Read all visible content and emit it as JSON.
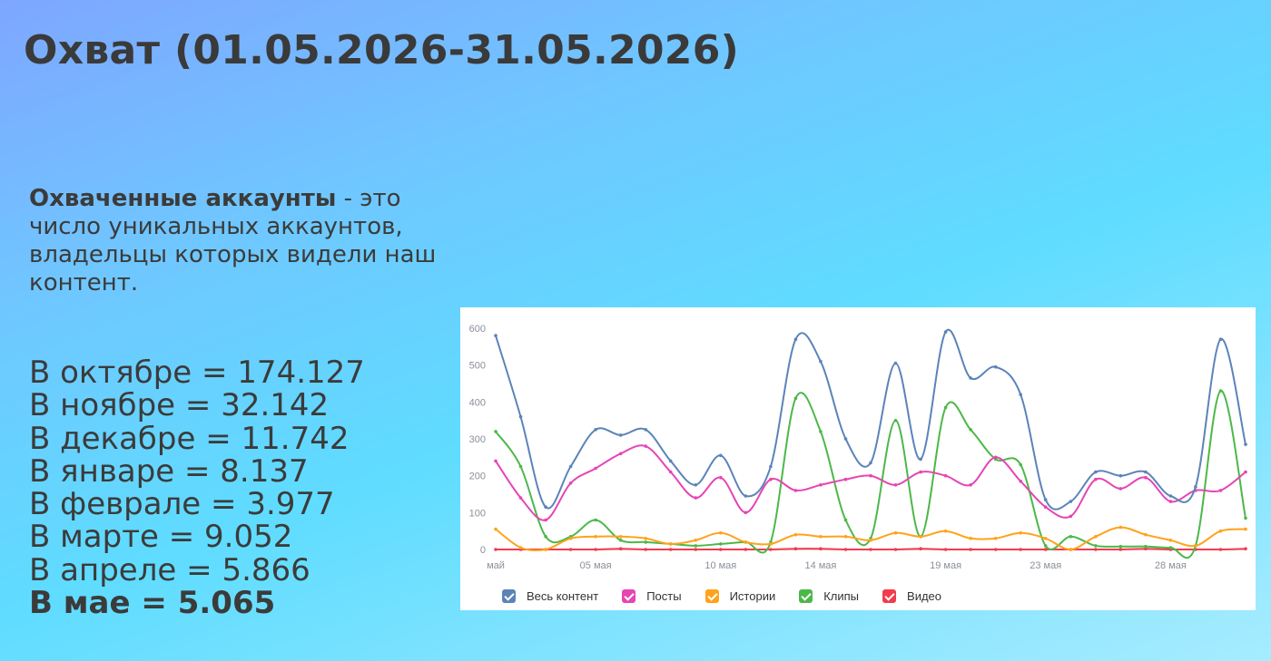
{
  "page": {
    "title": "Охват (01.05.2026-31.05.2026)",
    "description_bold": "Охваченные аккаунты",
    "description_rest": " - это число уникальных аккаунтов, владельцы которых видели наш контент.",
    "monthly": [
      {
        "text": "В октябре = 174.127",
        "bold": false
      },
      {
        "text": "В ноябре = 32.142",
        "bold": false
      },
      {
        "text": "В декабре = 11.742",
        "bold": false
      },
      {
        "text": "В январе = 8.137",
        "bold": false
      },
      {
        "text": "В феврале = 3.977",
        "bold": false
      },
      {
        "text": "В марте = 9.052",
        "bold": false
      },
      {
        "text": "В апреле = 5.866",
        "bold": false
      },
      {
        "text": "В мае = 5.065",
        "bold": true
      }
    ]
  },
  "chart_data": {
    "type": "line",
    "x": [
      1,
      2,
      3,
      4,
      5,
      6,
      7,
      8,
      9,
      10,
      11,
      12,
      13,
      14,
      15,
      16,
      17,
      18,
      19,
      20,
      21,
      22,
      23,
      24,
      25,
      26,
      27,
      28,
      29,
      30,
      31
    ],
    "x_tick_values": [
      1,
      5,
      10,
      14,
      19,
      23,
      28
    ],
    "x_tick_labels": [
      "май",
      "05 мая",
      "10 мая",
      "14 мая",
      "19 мая",
      "23 мая",
      "28 мая"
    ],
    "ylim": [
      0,
      600
    ],
    "y_ticks": [
      0,
      100,
      200,
      300,
      400,
      500,
      600
    ],
    "grid": false,
    "legend_position": "bottom",
    "series": [
      {
        "name": "Весь контент",
        "color": "#5b84b8",
        "values": [
          580,
          360,
          115,
          225,
          325,
          310,
          325,
          240,
          175,
          255,
          145,
          225,
          570,
          510,
          300,
          235,
          505,
          245,
          590,
          465,
          495,
          420,
          135,
          130,
          210,
          200,
          210,
          145,
          170,
          570,
          285
        ]
      },
      {
        "name": "Посты",
        "color": "#e645b4",
        "values": [
          240,
          140,
          80,
          180,
          220,
          260,
          280,
          210,
          140,
          195,
          100,
          190,
          160,
          175,
          190,
          200,
          175,
          210,
          200,
          175,
          250,
          185,
          115,
          90,
          190,
          165,
          195,
          130,
          160,
          160,
          210
        ]
      },
      {
        "name": "Истории",
        "color": "#ffa31a",
        "values": [
          55,
          5,
          0,
          30,
          35,
          35,
          30,
          15,
          25,
          45,
          20,
          15,
          40,
          35,
          35,
          25,
          45,
          35,
          50,
          30,
          30,
          45,
          30,
          0,
          35,
          60,
          40,
          25,
          10,
          50,
          55
        ]
      },
      {
        "name": "Клипы",
        "color": "#4cb849",
        "values": [
          320,
          225,
          35,
          35,
          80,
          25,
          20,
          15,
          10,
          15,
          20,
          20,
          410,
          320,
          80,
          30,
          350,
          35,
          385,
          325,
          245,
          230,
          10,
          35,
          10,
          8,
          8,
          5,
          10,
          430,
          85
        ]
      },
      {
        "name": "Видео",
        "color": "#f23c4c",
        "values": [
          0,
          0,
          0,
          0,
          0,
          2,
          0,
          0,
          0,
          0,
          0,
          0,
          2,
          2,
          0,
          0,
          0,
          2,
          0,
          0,
          0,
          0,
          0,
          0,
          0,
          0,
          2,
          0,
          0,
          0,
          2
        ]
      }
    ]
  }
}
